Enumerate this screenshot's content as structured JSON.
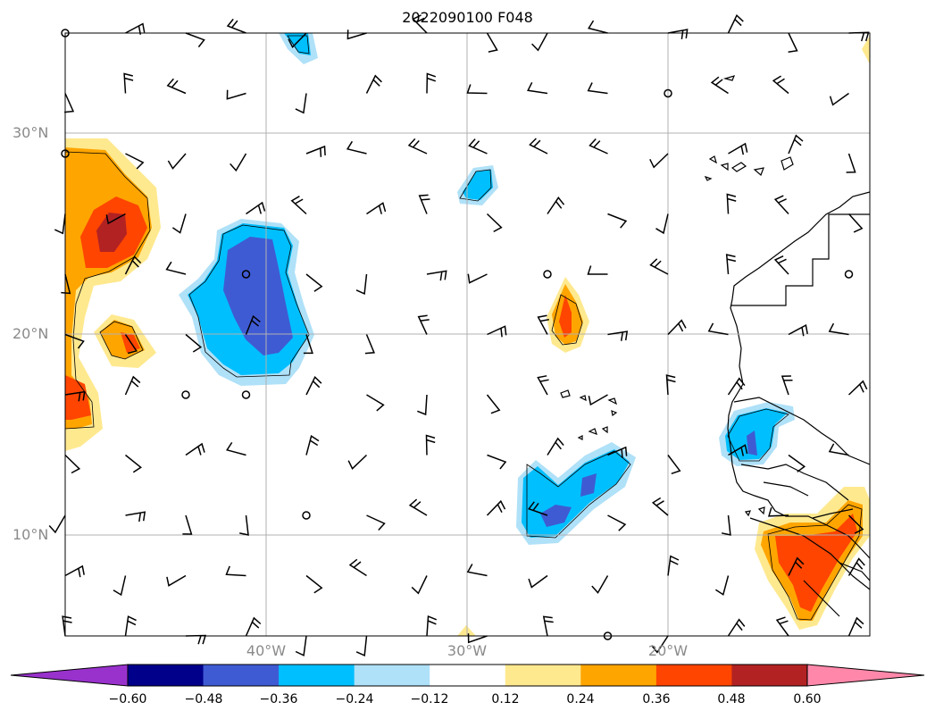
{
  "title": "2022090100 F048",
  "lat_labels": [
    "30°N",
    "20°N",
    "10°N"
  ],
  "lon_labels": [
    "40°W",
    "30°W",
    "20°W"
  ],
  "colorbar": {
    "ticks": [
      "−0.60",
      "−0.48",
      "−0.36",
      "−0.24",
      "−0.12",
      "0.12",
      "0.24",
      "0.36",
      "0.48",
      "0.60"
    ],
    "colors": [
      "#9932cc",
      "#00008b",
      "#3f5bd3",
      "#00bfff",
      "#afe1f8",
      "#ffffff",
      "#ffe98f",
      "#ffa500",
      "#ff4500",
      "#b22222",
      "#ff88aa"
    ]
  },
  "map": {
    "extent": {
      "lon_min": -50,
      "lon_max": -10,
      "lat_min": 5,
      "lat_max": 35
    },
    "gridlines": {
      "lons": [
        -40,
        -30,
        -20
      ],
      "lats": [
        10,
        20,
        30
      ]
    },
    "colors": {
      "frame": "#000000",
      "grid": "#b0b0b0",
      "coast": "#000000",
      "barb": "#000000"
    }
  }
}
